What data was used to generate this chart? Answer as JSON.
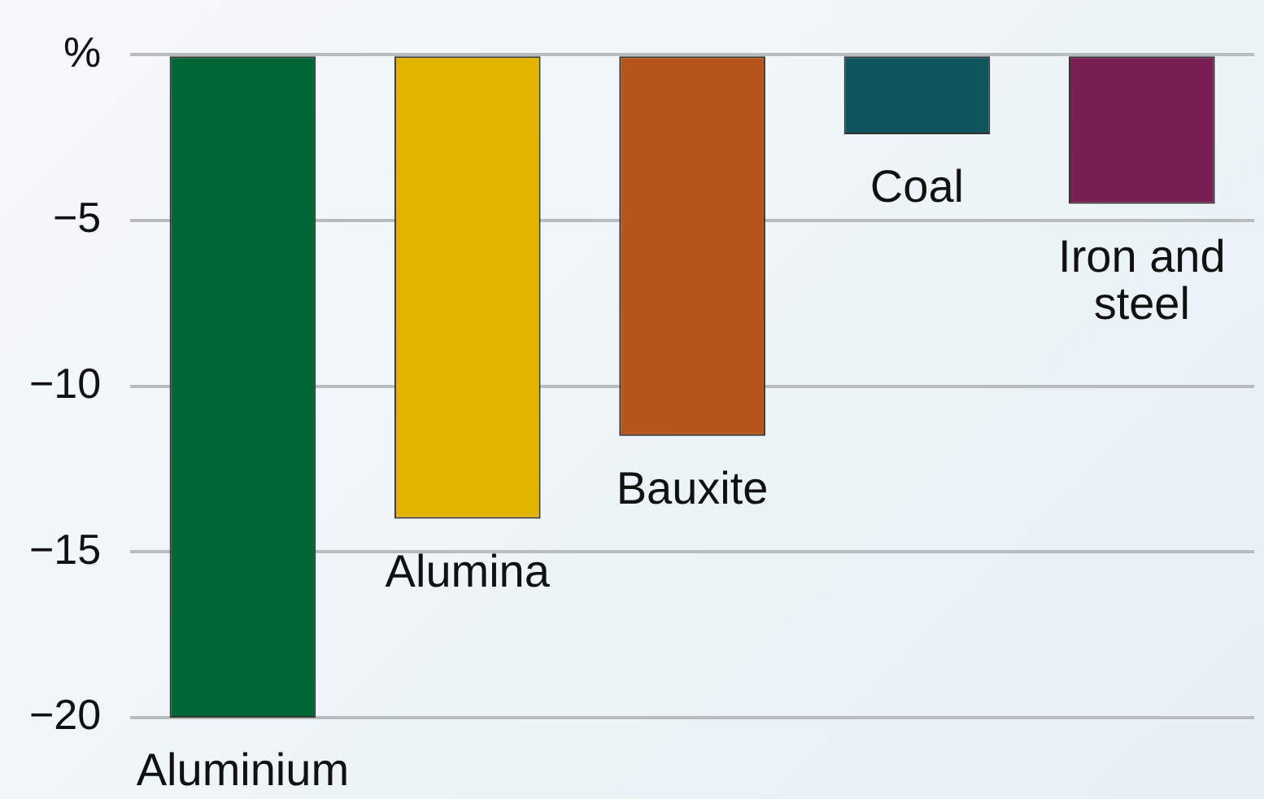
{
  "chart_data": {
    "type": "bar",
    "categories": [
      "Aluminium",
      "Alumina",
      "Bauxite",
      "Coal",
      "Iron and steel"
    ],
    "values": [
      -20,
      -14,
      -11.5,
      -2.4,
      -4.5
    ],
    "colors": [
      "#006633",
      "#e0b400",
      "#b5561c",
      "#0f5560",
      "#7a1f52"
    ],
    "ylim": [
      -20,
      0
    ],
    "yticks": [
      {
        "value": 0,
        "label": "%"
      },
      {
        "value": -5,
        "label": "−5"
      },
      {
        "value": -10,
        "label": "−10"
      },
      {
        "value": -15,
        "label": "−15"
      },
      {
        "value": -20,
        "label": "−20"
      }
    ],
    "grid": "y",
    "tick_labels": "y"
  }
}
